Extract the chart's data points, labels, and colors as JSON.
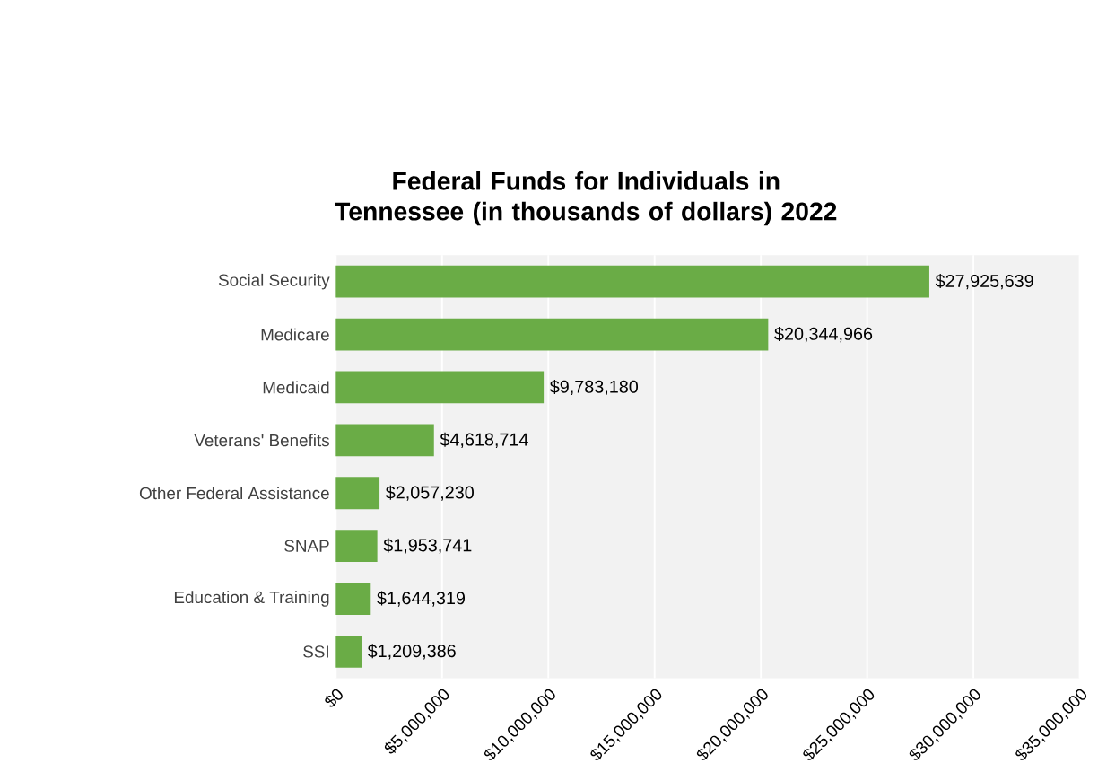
{
  "chart_data": {
    "type": "bar",
    "orientation": "horizontal",
    "title": "Federal Funds for Individuals in Tennessee (in thousands of dollars) 2022",
    "categories": [
      "Social Security",
      "Medicare",
      "Medicaid",
      "Veterans' Benefits",
      "Other Federal Assistance",
      "SNAP",
      "Education & Training",
      "SSI"
    ],
    "values": [
      27925639,
      20344966,
      9783180,
      4618714,
      2057230,
      1953741,
      1644319,
      1209386
    ],
    "value_labels": [
      "$27,925,639",
      "$20,344,966",
      "$9,783,180",
      "$4,618,714",
      "$2,057,230",
      "$1,953,741",
      "$1,644,319",
      "$1,209,386"
    ],
    "color": "#6aac46",
    "xlim": [
      0,
      35000000
    ],
    "xticks": [
      {
        "value": 0,
        "label": "$0"
      },
      {
        "value": 5000000,
        "label": "$5,000,000"
      },
      {
        "value": 10000000,
        "label": "$10,000,000"
      },
      {
        "value": 15000000,
        "label": "$15,000,000"
      },
      {
        "value": 20000000,
        "label": "$20,000,000"
      },
      {
        "value": 25000000,
        "label": "$25,000,000"
      },
      {
        "value": 30000000,
        "label": "$30,000,000"
      },
      {
        "value": 35000000,
        "label": "$35,000,000"
      }
    ],
    "grid": "x"
  }
}
